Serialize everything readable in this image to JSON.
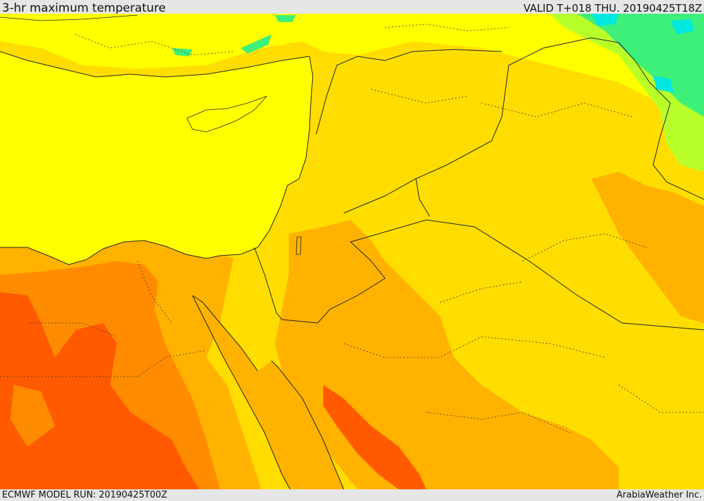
{
  "header": {
    "title": "3-hr maximum temperature",
    "valid": "VALID T+018 THU. 20190425T18Z"
  },
  "footer": {
    "model_run": "ECMWF MODEL RUN: 20190425T00Z",
    "credit": "ArabiaWeather Inc."
  },
  "map": {
    "colors": {
      "sea": "#ffff00",
      "level_1": "#ffdd00",
      "level_2": "#ffb300",
      "level_3": "#ff8c00",
      "level_4": "#ff5a00",
      "cool_1": "#b8ff2a",
      "cool_2": "#3cf07a",
      "cool_3": "#00e8e0"
    }
  }
}
